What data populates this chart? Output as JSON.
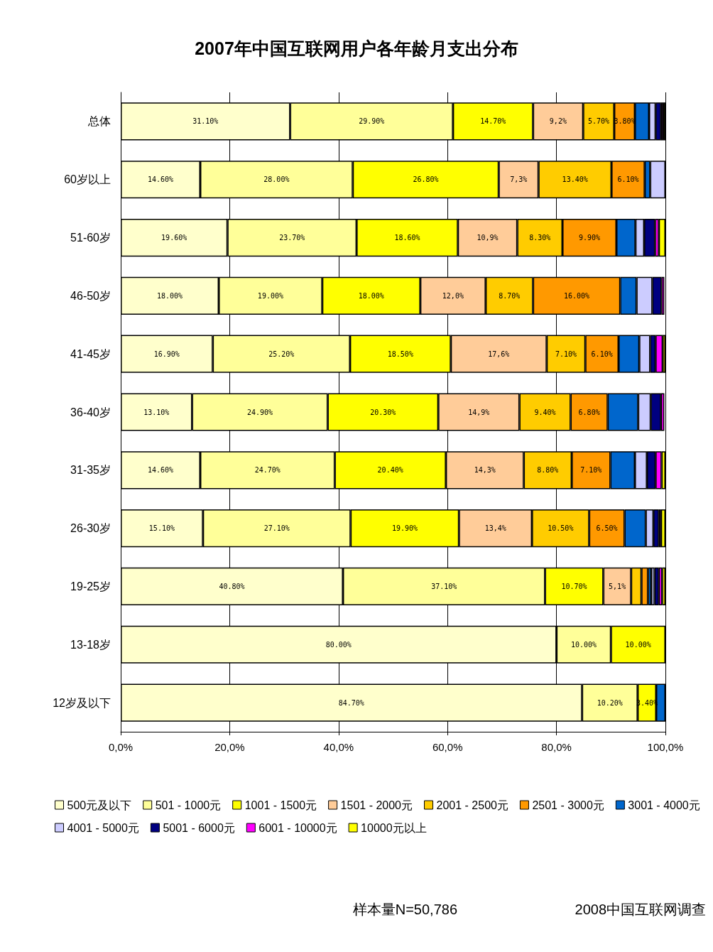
{
  "chart_data": {
    "type": "bar",
    "orientation": "horizontal",
    "stacked": true,
    "title": "2007年中国互联网用户各年龄月支出分布",
    "categories": [
      "总体",
      "60岁以上",
      "51-60岁",
      "46-50岁",
      "41-45岁",
      "36-40岁",
      "31-35岁",
      "26-30岁",
      "19-25岁",
      "13-18岁",
      "12岁及以下"
    ],
    "series": [
      {
        "name": "500元及以下",
        "color": "#ffffcc",
        "values": [
          31.1,
          14.6,
          19.6,
          18.0,
          16.9,
          13.1,
          14.6,
          15.1,
          40.8,
          80.0,
          84.7
        ],
        "value_labels": [
          "31.10%",
          "14.60%",
          "19.60%",
          "18.00%",
          "16.90%",
          "13.10%",
          "14.60%",
          "15.10%",
          "40.80%",
          "80.00%",
          "84.70%"
        ]
      },
      {
        "name": "501 - 1000元",
        "color": "#ffff99",
        "values": [
          29.9,
          28.0,
          23.7,
          19.0,
          25.2,
          24.9,
          24.7,
          27.1,
          37.1,
          10.0,
          10.2
        ],
        "value_labels": [
          "29.90%",
          "28.00%",
          "23.70%",
          "19.00%",
          "25.20%",
          "24.90%",
          "24.70%",
          "27.10%",
          "37.10%",
          "10.00%",
          "10.20%"
        ]
      },
      {
        "name": "1001 - 1500元",
        "color": "#ffff00",
        "values": [
          14.7,
          26.8,
          18.6,
          18.0,
          18.5,
          20.3,
          20.4,
          19.9,
          10.7,
          10.0,
          3.4
        ],
        "value_labels": [
          "14.70%",
          "26.80%",
          "18.60%",
          "18.00%",
          "18.50%",
          "20.30%",
          "20.40%",
          "19.90%",
          "10.70%",
          "10.00%",
          "3.40%"
        ]
      },
      {
        "name": "1501 - 2000元",
        "color": "#ffcc99",
        "values": [
          9.2,
          7.3,
          10.9,
          12.0,
          17.6,
          14.9,
          14.3,
          13.4,
          5.1,
          null,
          null
        ],
        "value_labels": [
          "9,2%",
          "7,3%",
          "10,9%",
          "12,0%",
          "17,6%",
          "14,9%",
          "14,3%",
          "13,4%",
          "5,1%",
          null,
          null
        ]
      },
      {
        "name": "2001 - 2500元",
        "color": "#ffcc00",
        "values": [
          5.7,
          13.4,
          8.3,
          8.7,
          7.1,
          9.4,
          8.8,
          10.5,
          1.9,
          null,
          null
        ],
        "value_labels": [
          "5.70%",
          "13.40%",
          "8.30%",
          "8.70%",
          "7.10%",
          "9.40%",
          "8.80%",
          "10.50%",
          null,
          null,
          null
        ]
      },
      {
        "name": "2501 - 3000元",
        "color": "#ff9900",
        "values": [
          3.8,
          6.1,
          9.9,
          16.0,
          6.1,
          6.8,
          7.1,
          6.5,
          1.2,
          null,
          null
        ],
        "value_labels": [
          "3.80%",
          "6.10%",
          "9.90%",
          "16.00%",
          "6.10%",
          "6.80%",
          "7.10%",
          "6.50%",
          null,
          null,
          null
        ]
      },
      {
        "name": "3001 - 4000元",
        "color": "#0066cc",
        "values": [
          2.6,
          1.0,
          3.5,
          3.0,
          3.8,
          5.6,
          4.5,
          3.9,
          0.6,
          null,
          1.7
        ]
      },
      {
        "name": "4001 - 5000元",
        "color": "#ccccff",
        "values": [
          1.2,
          2.8,
          1.6,
          2.9,
          2.0,
          2.3,
          2.2,
          1.4,
          0.6,
          null,
          null
        ]
      },
      {
        "name": "5001 - 6000元",
        "color": "#000080",
        "values": [
          1.0,
          null,
          2.0,
          1.7,
          1.0,
          1.9,
          1.6,
          1.0,
          0.8,
          null,
          null
        ]
      },
      {
        "name": "6001 - 10000元",
        "color": "#ff00ff",
        "values": [
          0.4,
          null,
          0.7,
          0.5,
          1.3,
          0.6,
          1.1,
          0.4,
          0.6,
          null,
          null
        ]
      },
      {
        "name": "10000元以上",
        "color": "#ffff00",
        "values": [
          0.4,
          null,
          1.2,
          null,
          0.5,
          null,
          0.7,
          0.8,
          0.6,
          null,
          null
        ]
      }
    ],
    "xlim": [
      0,
      100
    ],
    "xticks": [
      {
        "value": 0,
        "label": "0,0%"
      },
      {
        "value": 20,
        "label": "20,0%"
      },
      {
        "value": 40,
        "label": "40,0%"
      },
      {
        "value": 60,
        "label": "60,0%"
      },
      {
        "value": 80,
        "label": "80,0%"
      },
      {
        "value": 100,
        "label": "100,0%"
      }
    ],
    "grid": "x",
    "legend": "bottom",
    "annotations": [
      "样本量N=50,786",
      "2008中国互联网调查"
    ]
  }
}
